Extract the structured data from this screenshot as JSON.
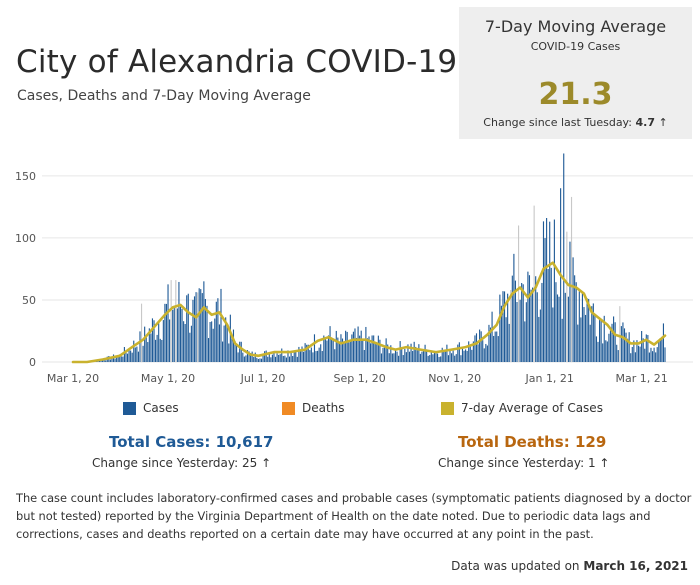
{
  "header": {
    "title": "City of Alexandria COVID-19",
    "subtitle": "Cases, Deaths and 7-Day Moving Average"
  },
  "kpi": {
    "title": "7-Day Moving Average",
    "subtitle": "COVID-19 Cases",
    "value": "21.3",
    "change_label": "Change since last Tuesday:",
    "change_value": "4.7",
    "change_arrow": "↑"
  },
  "legend": {
    "cases": "Cases",
    "deaths": "Deaths",
    "avg": "7-day Average of Cases"
  },
  "totals": {
    "cases_label": "Total Cases: 10,617",
    "cases_change": "Change since Yesterday: 25 ↑",
    "deaths_label": "Total Deaths: 129",
    "deaths_change": "Change since Yesterday: 1 ↑"
  },
  "footnote": "The case count includes laboratory-confirmed cases and probable cases (symptomatic patients diagnosed by a doctor but not tested) reported by the Virginia Department of Health on the date noted. Due to periodic data lags and corrections, cases and deaths reported on a certain date may have occurred at any point in the past.",
  "updated": {
    "label": "Data was updated on",
    "date": "March 16, 2021"
  },
  "colors": {
    "cases": "#1f5a96",
    "deaths": "#f08a24",
    "avg": "#c9b22e",
    "kpi_value": "#9c8a2a",
    "total_cases": "#1f5a96",
    "total_deaths": "#b8660f"
  },
  "chart_data": {
    "type": "bar",
    "x_axis": "date",
    "xlim": [
      "2020-03-01",
      "2021-03-16"
    ],
    "ylim": [
      0,
      170
    ],
    "yticks": [
      0,
      50,
      100,
      150
    ],
    "xtick_labels": [
      "Mar 1, 20",
      "May 1, 20",
      "Jul 1, 20",
      "Sep 1, 20",
      "Nov 1, 20",
      "Jan 1, 21",
      "Mar 1, 21"
    ],
    "xtick_dates": [
      "2020-03-01",
      "2020-05-01",
      "2020-07-01",
      "2020-09-01",
      "2020-11-01",
      "2021-01-01",
      "2021-03-01"
    ],
    "grid": true,
    "series": [
      {
        "name": "Cases",
        "type": "bar",
        "color": "#1f5a96"
      },
      {
        "name": "Deaths",
        "type": "bar",
        "color": "#f08a24"
      },
      {
        "name": "7-day Average of Cases",
        "type": "line",
        "color": "#c9b22e"
      }
    ],
    "avg_points": [
      [
        "2020-03-01",
        0
      ],
      [
        "2020-03-10",
        0
      ],
      [
        "2020-03-20",
        2
      ],
      [
        "2020-03-31",
        5
      ],
      [
        "2020-04-08",
        12
      ],
      [
        "2020-04-15",
        18
      ],
      [
        "2020-04-22",
        28
      ],
      [
        "2020-04-29",
        38
      ],
      [
        "2020-05-04",
        44
      ],
      [
        "2020-05-09",
        46
      ],
      [
        "2020-05-14",
        40
      ],
      [
        "2020-05-19",
        36
      ],
      [
        "2020-05-24",
        44
      ],
      [
        "2020-05-29",
        38
      ],
      [
        "2020-06-03",
        40
      ],
      [
        "2020-06-08",
        30
      ],
      [
        "2020-06-13",
        15
      ],
      [
        "2020-06-18",
        10
      ],
      [
        "2020-06-23",
        6
      ],
      [
        "2020-06-28",
        5
      ],
      [
        "2020-07-08",
        8
      ],
      [
        "2020-07-18",
        8
      ],
      [
        "2020-07-28",
        10
      ],
      [
        "2020-08-05",
        17
      ],
      [
        "2020-08-12",
        20
      ],
      [
        "2020-08-20",
        15
      ],
      [
        "2020-08-28",
        18
      ],
      [
        "2020-09-05",
        18
      ],
      [
        "2020-09-12",
        15
      ],
      [
        "2020-09-18",
        12
      ],
      [
        "2020-09-24",
        10
      ],
      [
        "2020-10-01",
        12
      ],
      [
        "2020-10-10",
        10
      ],
      [
        "2020-10-20",
        8
      ],
      [
        "2020-10-30",
        10
      ],
      [
        "2020-11-08",
        12
      ],
      [
        "2020-11-15",
        15
      ],
      [
        "2020-11-22",
        22
      ],
      [
        "2020-11-28",
        30
      ],
      [
        "2020-12-03",
        45
      ],
      [
        "2020-12-08",
        55
      ],
      [
        "2020-12-13",
        60
      ],
      [
        "2020-12-18",
        52
      ],
      [
        "2020-12-23",
        60
      ],
      [
        "2020-12-28",
        75
      ],
      [
        "2021-01-03",
        80
      ],
      [
        "2021-01-08",
        70
      ],
      [
        "2021-01-13",
        62
      ],
      [
        "2021-01-18",
        60
      ],
      [
        "2021-01-23",
        55
      ],
      [
        "2021-01-28",
        40
      ],
      [
        "2021-02-02",
        35
      ],
      [
        "2021-02-07",
        30
      ],
      [
        "2021-02-12",
        22
      ],
      [
        "2021-02-17",
        20
      ],
      [
        "2021-02-22",
        15
      ],
      [
        "2021-02-27",
        15
      ],
      [
        "2021-03-04",
        18
      ],
      [
        "2021-03-09",
        14
      ],
      [
        "2021-03-16",
        21.3
      ]
    ]
  }
}
